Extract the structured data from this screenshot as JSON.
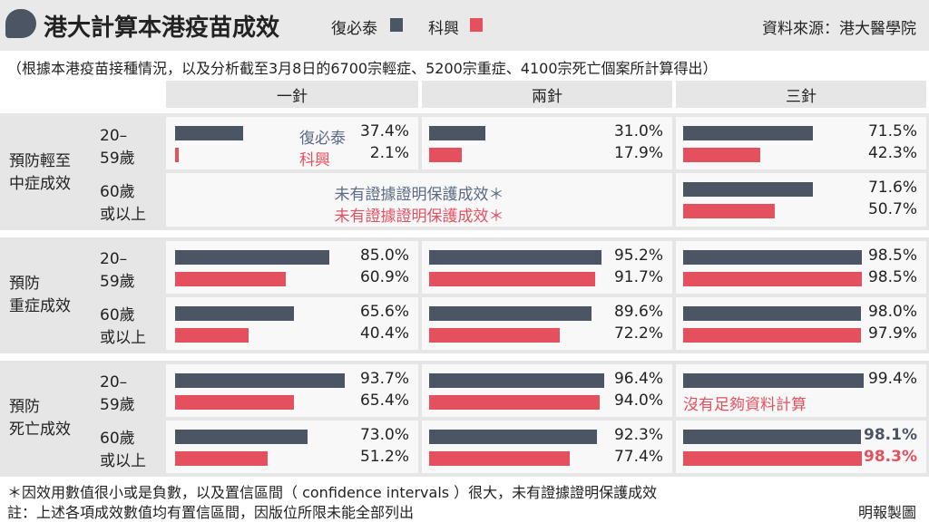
{
  "header": {
    "title": "港大計算本港疫苗成效",
    "legend": [
      {
        "label": "復必泰",
        "color": "#4b5563"
      },
      {
        "label": "科興",
        "color": "#e5505f"
      }
    ],
    "source": "資料來源：港大醫學院"
  },
  "note": "（根據本港疫苗接種情況，以及分析截至3月8日的6700宗輕症、5200宗重症、4100宗死亡個案所計算得出）",
  "columns": [
    "一針",
    "兩針",
    "三針"
  ],
  "groups": [
    {
      "label_line1": "預防輕至",
      "label_line2": "中症成效"
    },
    {
      "label_line1": "預防",
      "label_line2": "重症成效"
    },
    {
      "label_line1": "預防",
      "label_line2": "死亡成效"
    }
  ],
  "ages": [
    {
      "line1": "20–",
      "line2": "59歲"
    },
    {
      "line1": "60歲",
      "line2": "或以上"
    }
  ],
  "inline_labels": {
    "pfizer": "復必泰",
    "sinovac": "科興"
  },
  "no_evidence_pfizer": "未有證據證明保護成效＊",
  "no_evidence_sinovac": "未有證據證明保護成效＊",
  "no_data": "沒有足夠資料計算",
  "footnote1": "＊因效用數值很小或是負數，以及置信區間（ confidence intervals ）很大，未有證據證明保護成效",
  "footnote2": "註：上述各項成效數值均有置信區間，因版位所限未能全部列出",
  "credit": "明報製圖",
  "chart_data": {
    "type": "bar",
    "unit": "%",
    "series_names": [
      "復必泰",
      "科興"
    ],
    "colors": {
      "pfizer": "#4b5563",
      "sinovac": "#e5505f"
    },
    "panels": [
      {
        "outcome": "預防輕至中症成效",
        "age": "20–59歲",
        "dose": "一針",
        "pfizer": 37.4,
        "sinovac": 2.1
      },
      {
        "outcome": "預防輕至中症成效",
        "age": "20–59歲",
        "dose": "兩針",
        "pfizer": 31.0,
        "sinovac": 17.9
      },
      {
        "outcome": "預防輕至中症成效",
        "age": "20–59歲",
        "dose": "三針",
        "pfizer": 71.5,
        "sinovac": 42.3
      },
      {
        "outcome": "預防輕至中症成效",
        "age": "60歲或以上",
        "dose": "三針",
        "pfizer": 71.6,
        "sinovac": 50.7
      },
      {
        "outcome": "預防重症成效",
        "age": "20–59歲",
        "dose": "一針",
        "pfizer": 85.0,
        "sinovac": 60.9
      },
      {
        "outcome": "預防重症成效",
        "age": "20–59歲",
        "dose": "兩針",
        "pfizer": 95.2,
        "sinovac": 91.7
      },
      {
        "outcome": "預防重症成效",
        "age": "20–59歲",
        "dose": "三針",
        "pfizer": 98.5,
        "sinovac": 98.5
      },
      {
        "outcome": "預防重症成效",
        "age": "60歲或以上",
        "dose": "一針",
        "pfizer": 65.6,
        "sinovac": 40.4
      },
      {
        "outcome": "預防重症成效",
        "age": "60歲或以上",
        "dose": "兩針",
        "pfizer": 89.6,
        "sinovac": 72.2
      },
      {
        "outcome": "預防重症成效",
        "age": "60歲或以上",
        "dose": "三針",
        "pfizer": 98.0,
        "sinovac": 97.9
      },
      {
        "outcome": "預防死亡成效",
        "age": "20–59歲",
        "dose": "一針",
        "pfizer": 93.7,
        "sinovac": 65.4
      },
      {
        "outcome": "預防死亡成效",
        "age": "20–59歲",
        "dose": "兩針",
        "pfizer": 96.4,
        "sinovac": 94.0
      },
      {
        "outcome": "預防死亡成效",
        "age": "20–59歲",
        "dose": "三針",
        "pfizer": 99.4,
        "sinovac": null
      },
      {
        "outcome": "預防死亡成效",
        "age": "60歲或以上",
        "dose": "一針",
        "pfizer": 73.0,
        "sinovac": 51.2
      },
      {
        "outcome": "預防死亡成效",
        "age": "60歲或以上",
        "dose": "兩針",
        "pfizer": 92.3,
        "sinovac": 77.4
      },
      {
        "outcome": "預防死亡成效",
        "age": "60歲或以上",
        "dose": "三針",
        "pfizer": 98.1,
        "sinovac": 98.3,
        "highlight": true
      }
    ]
  }
}
